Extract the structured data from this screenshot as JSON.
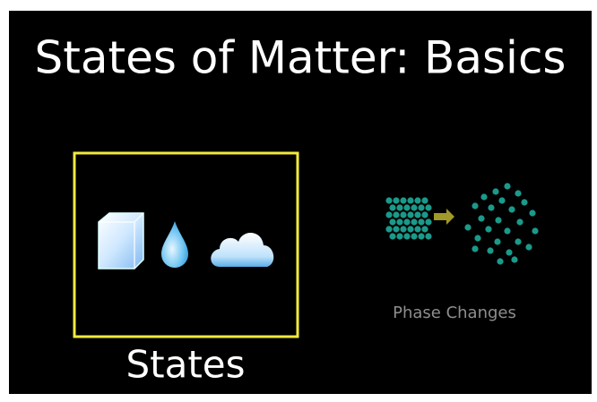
{
  "header": {
    "title": "States of Matter: Basics"
  },
  "screens": [
    {
      "label": "States"
    },
    {
      "label": "Phase Changes"
    }
  ]
}
